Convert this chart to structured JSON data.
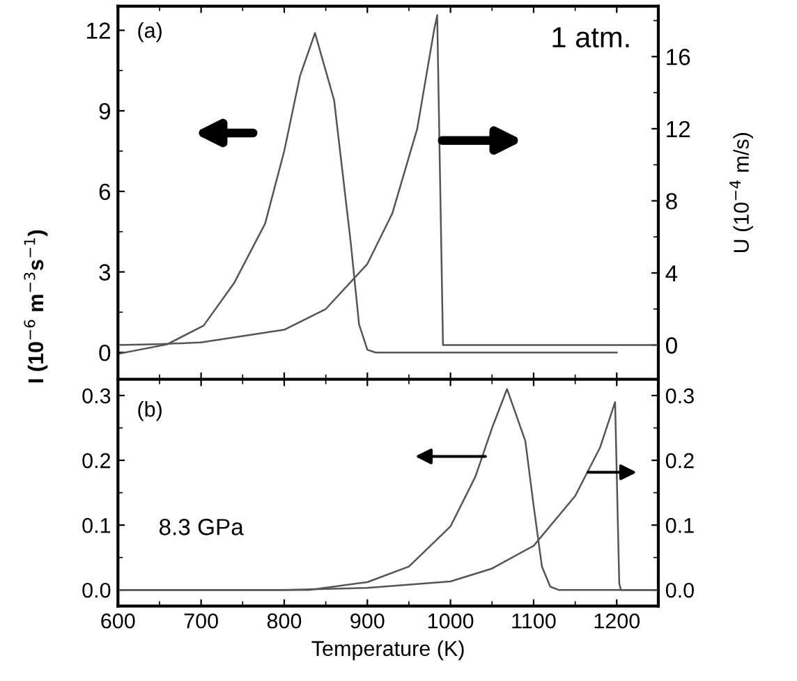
{
  "chart_data": [
    {
      "type": "line",
      "ylabel": "I (10$^{−6}$ m$^{−3}$s$^{−1}$)",
      "y2label": "U (10$^{−4}$ m/s)",
      "annotations": [
        "(a)",
        "1 atm."
      ],
      "xlim": [
        600,
        1250
      ],
      "xticks": [
        {
          "value": 600,
          "label": null
        },
        {
          "value": 700,
          "label": null
        },
        {
          "value": 800,
          "label": null
        },
        {
          "value": 900,
          "label": null
        },
        {
          "value": 1000,
          "label": null
        },
        {
          "value": 1100,
          "label": null
        },
        {
          "value": 1200,
          "label": null
        }
      ],
      "ylim": [
        -1,
        12.9
      ],
      "yticks": [
        0,
        3,
        6,
        9,
        12
      ],
      "y2lim": [
        -1.9,
        18.8
      ],
      "y2ticks": [
        0,
        4,
        8,
        12,
        16
      ],
      "tick_labels": "y",
      "series": [
        {
          "color": "#555555",
          "x": [
            600,
            659,
            703,
            740,
            777,
            800,
            819,
            837,
            860,
            880,
            890,
            900,
            910,
            1200
          ],
          "values": [
            -0.05,
            0.3,
            1.0,
            2.6,
            4.8,
            7.5,
            10.3,
            11.9,
            9.4,
            4.1,
            1.05,
            0.1,
            0,
            0
          ]
        },
        {
          "color": "#555555",
          "axis": "y2",
          "x": [
            600,
            650,
            700,
            800,
            850,
            900,
            930,
            960,
            980,
            984,
            991,
            1250
          ],
          "values": [
            0,
            0.05,
            0.15,
            0.85,
            2.0,
            4.5,
            7.3,
            12,
            17.4,
            18.3,
            0,
            0
          ]
        }
      ]
    },
    {
      "type": "line",
      "xlabel": "Temperature (K)",
      "annotations": [
        "(b)",
        "8.3 GPa"
      ],
      "xlim": [
        600,
        1250
      ],
      "xticks": [
        600,
        700,
        800,
        900,
        1000,
        1100,
        1200
      ],
      "ylim": [
        -0.025,
        0.325
      ],
      "yticks": [
        {
          "value": 0,
          "label": "0.0"
        },
        0.1,
        0.2,
        0.3
      ],
      "y2lim": [
        -0.025,
        0.325
      ],
      "y2ticks": [
        {
          "value": 0,
          "label": "0.0"
        },
        0.1,
        0.2,
        0.3
      ],
      "series": [
        {
          "color": "#555555",
          "x": [
            600,
            830,
            900,
            950,
            1000,
            1030,
            1050,
            1068,
            1090,
            1100,
            1110,
            1120,
            1130,
            1250
          ],
          "values": [
            0,
            0,
            0.012,
            0.036,
            0.098,
            0.175,
            0.25,
            0.31,
            0.23,
            0.13,
            0.036,
            0.005,
            0,
            0
          ]
        },
        {
          "color": "#555555",
          "axis": "y2",
          "x": [
            600,
            800,
            900,
            1000,
            1050,
            1100,
            1150,
            1180,
            1198,
            1203,
            1205,
            1250
          ],
          "values": [
            0,
            0,
            0.003,
            0.013,
            0.033,
            0.068,
            0.145,
            0.22,
            0.29,
            0.01,
            0,
            0
          ]
        }
      ]
    }
  ]
}
